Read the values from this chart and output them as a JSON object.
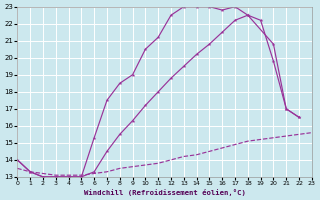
{
  "xlabel": "Windchill (Refroidissement éolien,°C)",
  "bg_color": "#cce8ee",
  "line_color": "#993399",
  "xlim": [
    0,
    23
  ],
  "ylim": [
    13,
    23
  ],
  "line1_x": [
    0,
    1,
    2,
    3,
    4,
    5,
    6,
    7,
    8,
    9,
    10,
    11,
    12,
    13,
    14,
    15,
    16,
    17,
    18,
    20,
    21,
    22
  ],
  "line1_y": [
    14.0,
    13.3,
    13.0,
    13.0,
    13.0,
    13.0,
    15.3,
    17.5,
    18.5,
    19.0,
    20.5,
    21.2,
    22.5,
    23.0,
    23.0,
    23.0,
    22.8,
    23.0,
    22.5,
    20.8,
    17.0,
    16.5
  ],
  "line2_x": [
    0,
    1,
    2,
    3,
    4,
    5,
    6,
    7,
    8,
    9,
    10,
    11,
    12,
    13,
    14,
    15,
    16,
    17,
    18,
    19,
    20,
    21,
    22
  ],
  "line2_y": [
    14.0,
    13.3,
    13.0,
    13.0,
    13.0,
    13.0,
    13.3,
    14.5,
    15.5,
    16.3,
    17.2,
    18.0,
    18.8,
    19.5,
    20.2,
    20.8,
    21.5,
    22.2,
    22.5,
    22.2,
    19.8,
    17.0,
    16.5
  ],
  "line3_x": [
    0,
    1,
    2,
    3,
    4,
    5,
    6,
    7,
    8,
    9,
    10,
    11,
    12,
    13,
    14,
    15,
    16,
    17,
    18,
    19,
    20,
    21,
    22,
    23
  ],
  "line3_y": [
    13.5,
    13.3,
    13.2,
    13.1,
    13.1,
    13.1,
    13.2,
    13.3,
    13.5,
    13.6,
    13.7,
    13.8,
    14.0,
    14.2,
    14.3,
    14.5,
    14.7,
    14.9,
    15.1,
    15.2,
    15.3,
    15.4,
    15.5,
    15.6
  ]
}
